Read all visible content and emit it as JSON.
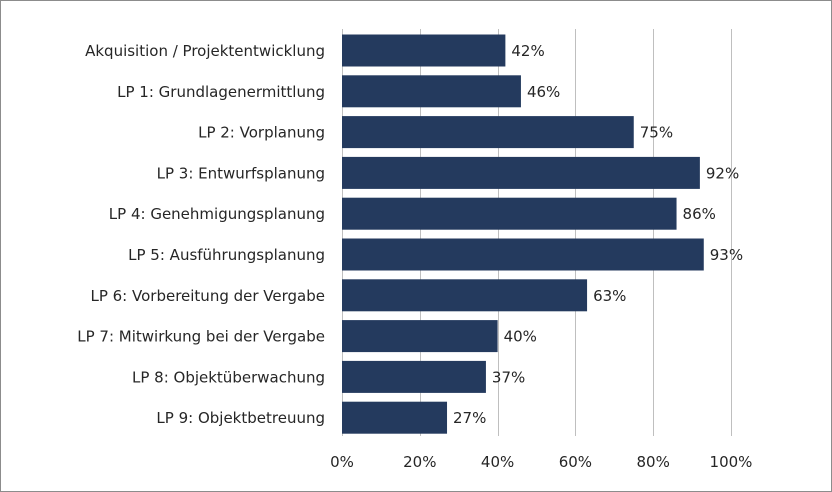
{
  "chart_data": {
    "type": "bar",
    "orientation": "horizontal",
    "title": "",
    "xlabel": "",
    "ylabel": "",
    "categories": [
      "Akquisition / Projektentwicklung",
      "LP 1: Grundlagenermittlung",
      "LP 2: Vorplanung",
      "LP 3: Entwurfsplanung",
      "LP 4: Genehmigungsplanung",
      "LP 5: Ausführungsplanung",
      "LP 6: Vorbereitung der Vergabe",
      "LP 7: Mitwirkung bei der Vergabe",
      "LP 8: Objektüberwachung",
      "LP 9: Objektbetreuung"
    ],
    "values": [
      42,
      46,
      75,
      92,
      86,
      93,
      63,
      40,
      37,
      27
    ],
    "data_labels": [
      "42%",
      "46%",
      "75%",
      "92%",
      "86%",
      "93%",
      "63%",
      "40%",
      "37%",
      "27%"
    ],
    "xlim": [
      0,
      100
    ],
    "x_ticks": [
      0,
      20,
      40,
      60,
      80,
      100
    ],
    "x_tick_labels": [
      "0%",
      "20%",
      "40%",
      "60%",
      "80%",
      "100%"
    ],
    "grid": "vertical",
    "legend": "none",
    "bar_color": "#243a5e",
    "grid_color": "#bfbfbf"
  }
}
